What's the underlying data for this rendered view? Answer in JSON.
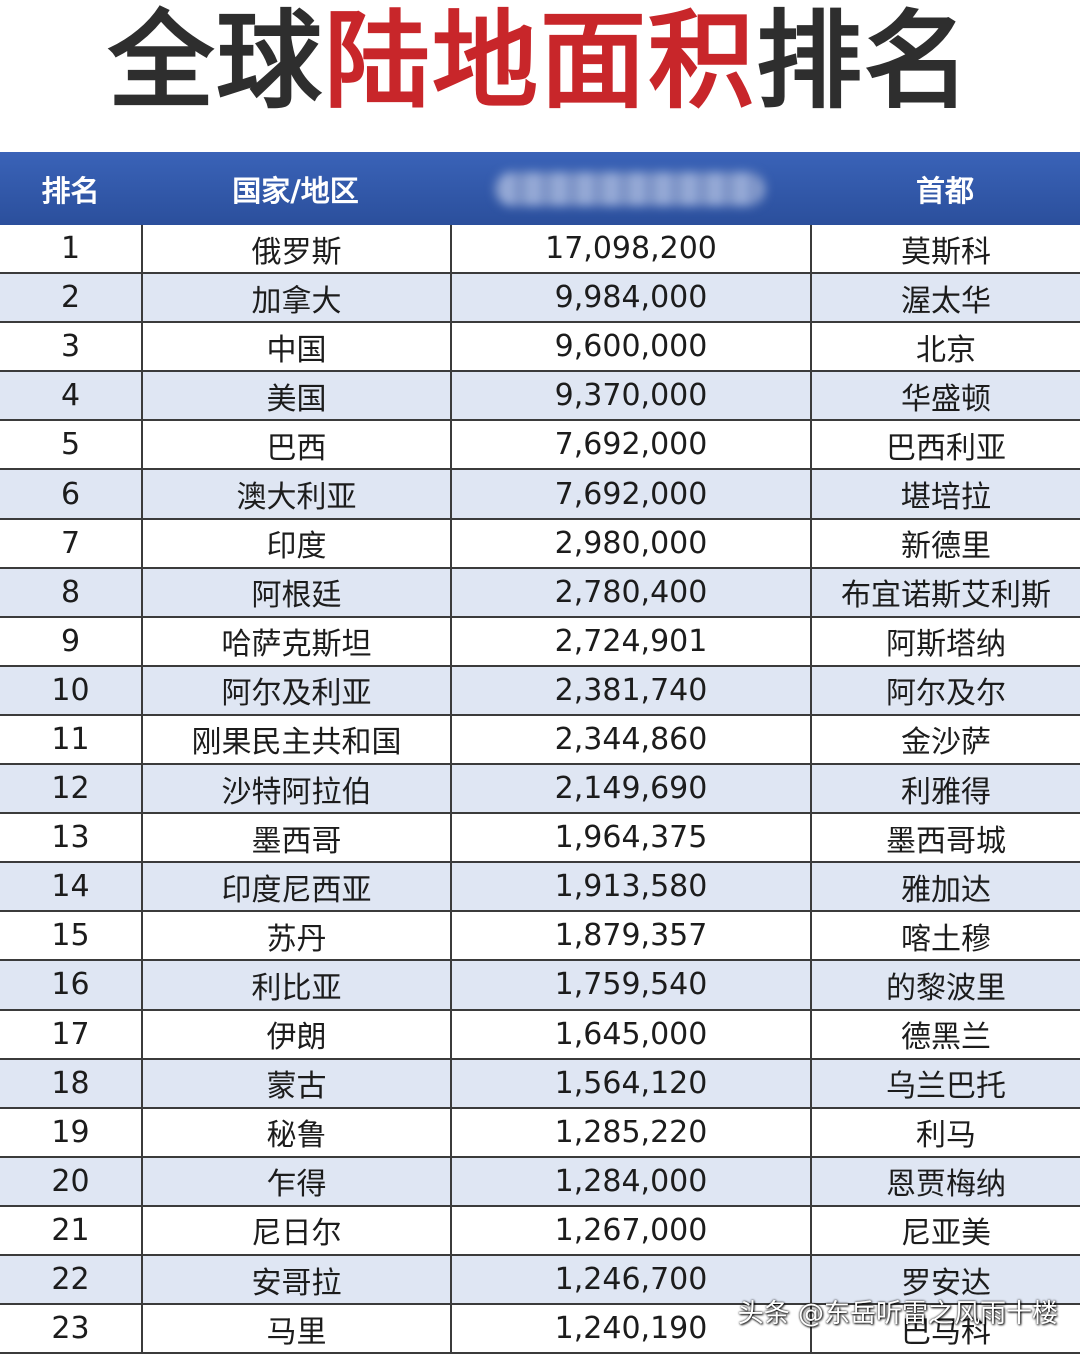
{
  "title": {
    "part1": "全球",
    "part2": "陆地面积",
    "part3": "排名"
  },
  "colors": {
    "title_dark": "#2e2e2e",
    "title_red": "#c8262a",
    "header_bg": "#2b4f9c",
    "row_alt": "#dfe6f3"
  },
  "table": {
    "headers": {
      "rank": "排名",
      "country": "国家/地区",
      "capital": "首都"
    },
    "rows": [
      {
        "rank": "1",
        "country": "俄罗斯",
        "area": "17,098,200",
        "capital": "莫斯科"
      },
      {
        "rank": "2",
        "country": "加拿大",
        "area": "9,984,000",
        "capital": "渥太华"
      },
      {
        "rank": "3",
        "country": "中国",
        "area": "9,600,000",
        "capital": "北京"
      },
      {
        "rank": "4",
        "country": "美国",
        "area": "9,370,000",
        "capital": "华盛顿"
      },
      {
        "rank": "5",
        "country": "巴西",
        "area": "7,692,000",
        "capital": "巴西利亚"
      },
      {
        "rank": "6",
        "country": "澳大利亚",
        "area": "7,692,000",
        "capital": "堪培拉"
      },
      {
        "rank": "7",
        "country": "印度",
        "area": "2,980,000",
        "capital": "新德里"
      },
      {
        "rank": "8",
        "country": "阿根廷",
        "area": "2,780,400",
        "capital": "布宜诺斯艾利斯"
      },
      {
        "rank": "9",
        "country": "哈萨克斯坦",
        "area": "2,724,901",
        "capital": "阿斯塔纳"
      },
      {
        "rank": "10",
        "country": "阿尔及利亚",
        "area": "2,381,740",
        "capital": "阿尔及尔"
      },
      {
        "rank": "11",
        "country": "刚果民主共和国",
        "area": "2,344,860",
        "capital": "金沙萨"
      },
      {
        "rank": "12",
        "country": "沙特阿拉伯",
        "area": "2,149,690",
        "capital": "利雅得"
      },
      {
        "rank": "13",
        "country": "墨西哥",
        "area": "1,964,375",
        "capital": "墨西哥城"
      },
      {
        "rank": "14",
        "country": "印度尼西亚",
        "area": "1,913,580",
        "capital": "雅加达"
      },
      {
        "rank": "15",
        "country": "苏丹",
        "area": "1,879,357",
        "capital": "喀土穆"
      },
      {
        "rank": "16",
        "country": "利比亚",
        "area": "1,759,540",
        "capital": "的黎波里"
      },
      {
        "rank": "17",
        "country": "伊朗",
        "area": "1,645,000",
        "capital": "德黑兰"
      },
      {
        "rank": "18",
        "country": "蒙古",
        "area": "1,564,120",
        "capital": "乌兰巴托"
      },
      {
        "rank": "19",
        "country": "秘鲁",
        "area": "1,285,220",
        "capital": "利马"
      },
      {
        "rank": "20",
        "country": "乍得",
        "area": "1,284,000",
        "capital": "恩贾梅纳"
      },
      {
        "rank": "21",
        "country": "尼日尔",
        "area": "1,267,000",
        "capital": "尼亚美"
      },
      {
        "rank": "22",
        "country": "安哥拉",
        "area": "1,246,700",
        "capital": "罗安达"
      },
      {
        "rank": "23",
        "country": "马里",
        "area": "1,240,190",
        "capital": "巴马科"
      }
    ]
  },
  "watermark": "头条 @东岳听雷之风雨十楼"
}
